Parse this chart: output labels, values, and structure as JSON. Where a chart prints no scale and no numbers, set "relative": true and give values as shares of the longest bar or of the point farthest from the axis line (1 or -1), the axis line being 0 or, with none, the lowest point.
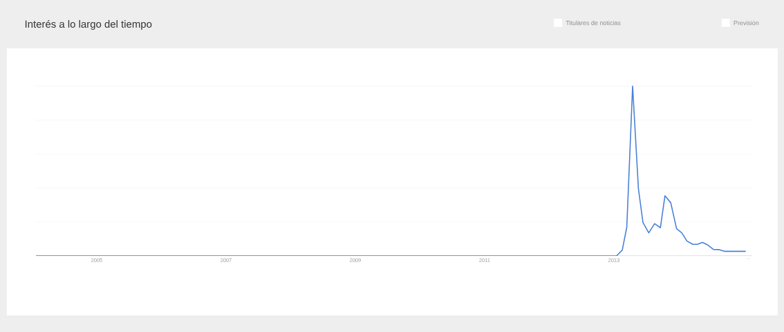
{
  "chart_data": {
    "type": "line",
    "title": "Interés a lo largo del tiempo",
    "annotations": [
      "Titulares de noticias",
      "Previsión"
    ],
    "relative": true,
    "grid": "y",
    "xlim": [
      2004.06,
      2015.14
    ],
    "xticks": [
      2005,
      2007,
      2009,
      2011,
      2013,
      {
        "value": 2015.08,
        "label": ".."
      }
    ],
    "x": [
      2004.06,
      2013.04,
      2013.13,
      2013.2,
      2013.29,
      2013.38,
      2013.45,
      2013.54,
      2013.63,
      2013.72,
      2013.79,
      2013.88,
      2013.97,
      2014.05,
      2014.13,
      2014.22,
      2014.29,
      2014.37,
      2014.45,
      2014.54,
      2014.63,
      2014.71,
      2015.04
    ],
    "values": [
      0,
      0,
      0.034,
      0.17,
      1,
      0.395,
      0.197,
      0.136,
      0.19,
      0.166,
      0.354,
      0.313,
      0.16,
      0.136,
      0.088,
      0.068,
      0.068,
      0.079,
      0.065,
      0.038,
      0.037,
      0.027,
      0.027
    ],
    "color": "#4a80d8"
  }
}
